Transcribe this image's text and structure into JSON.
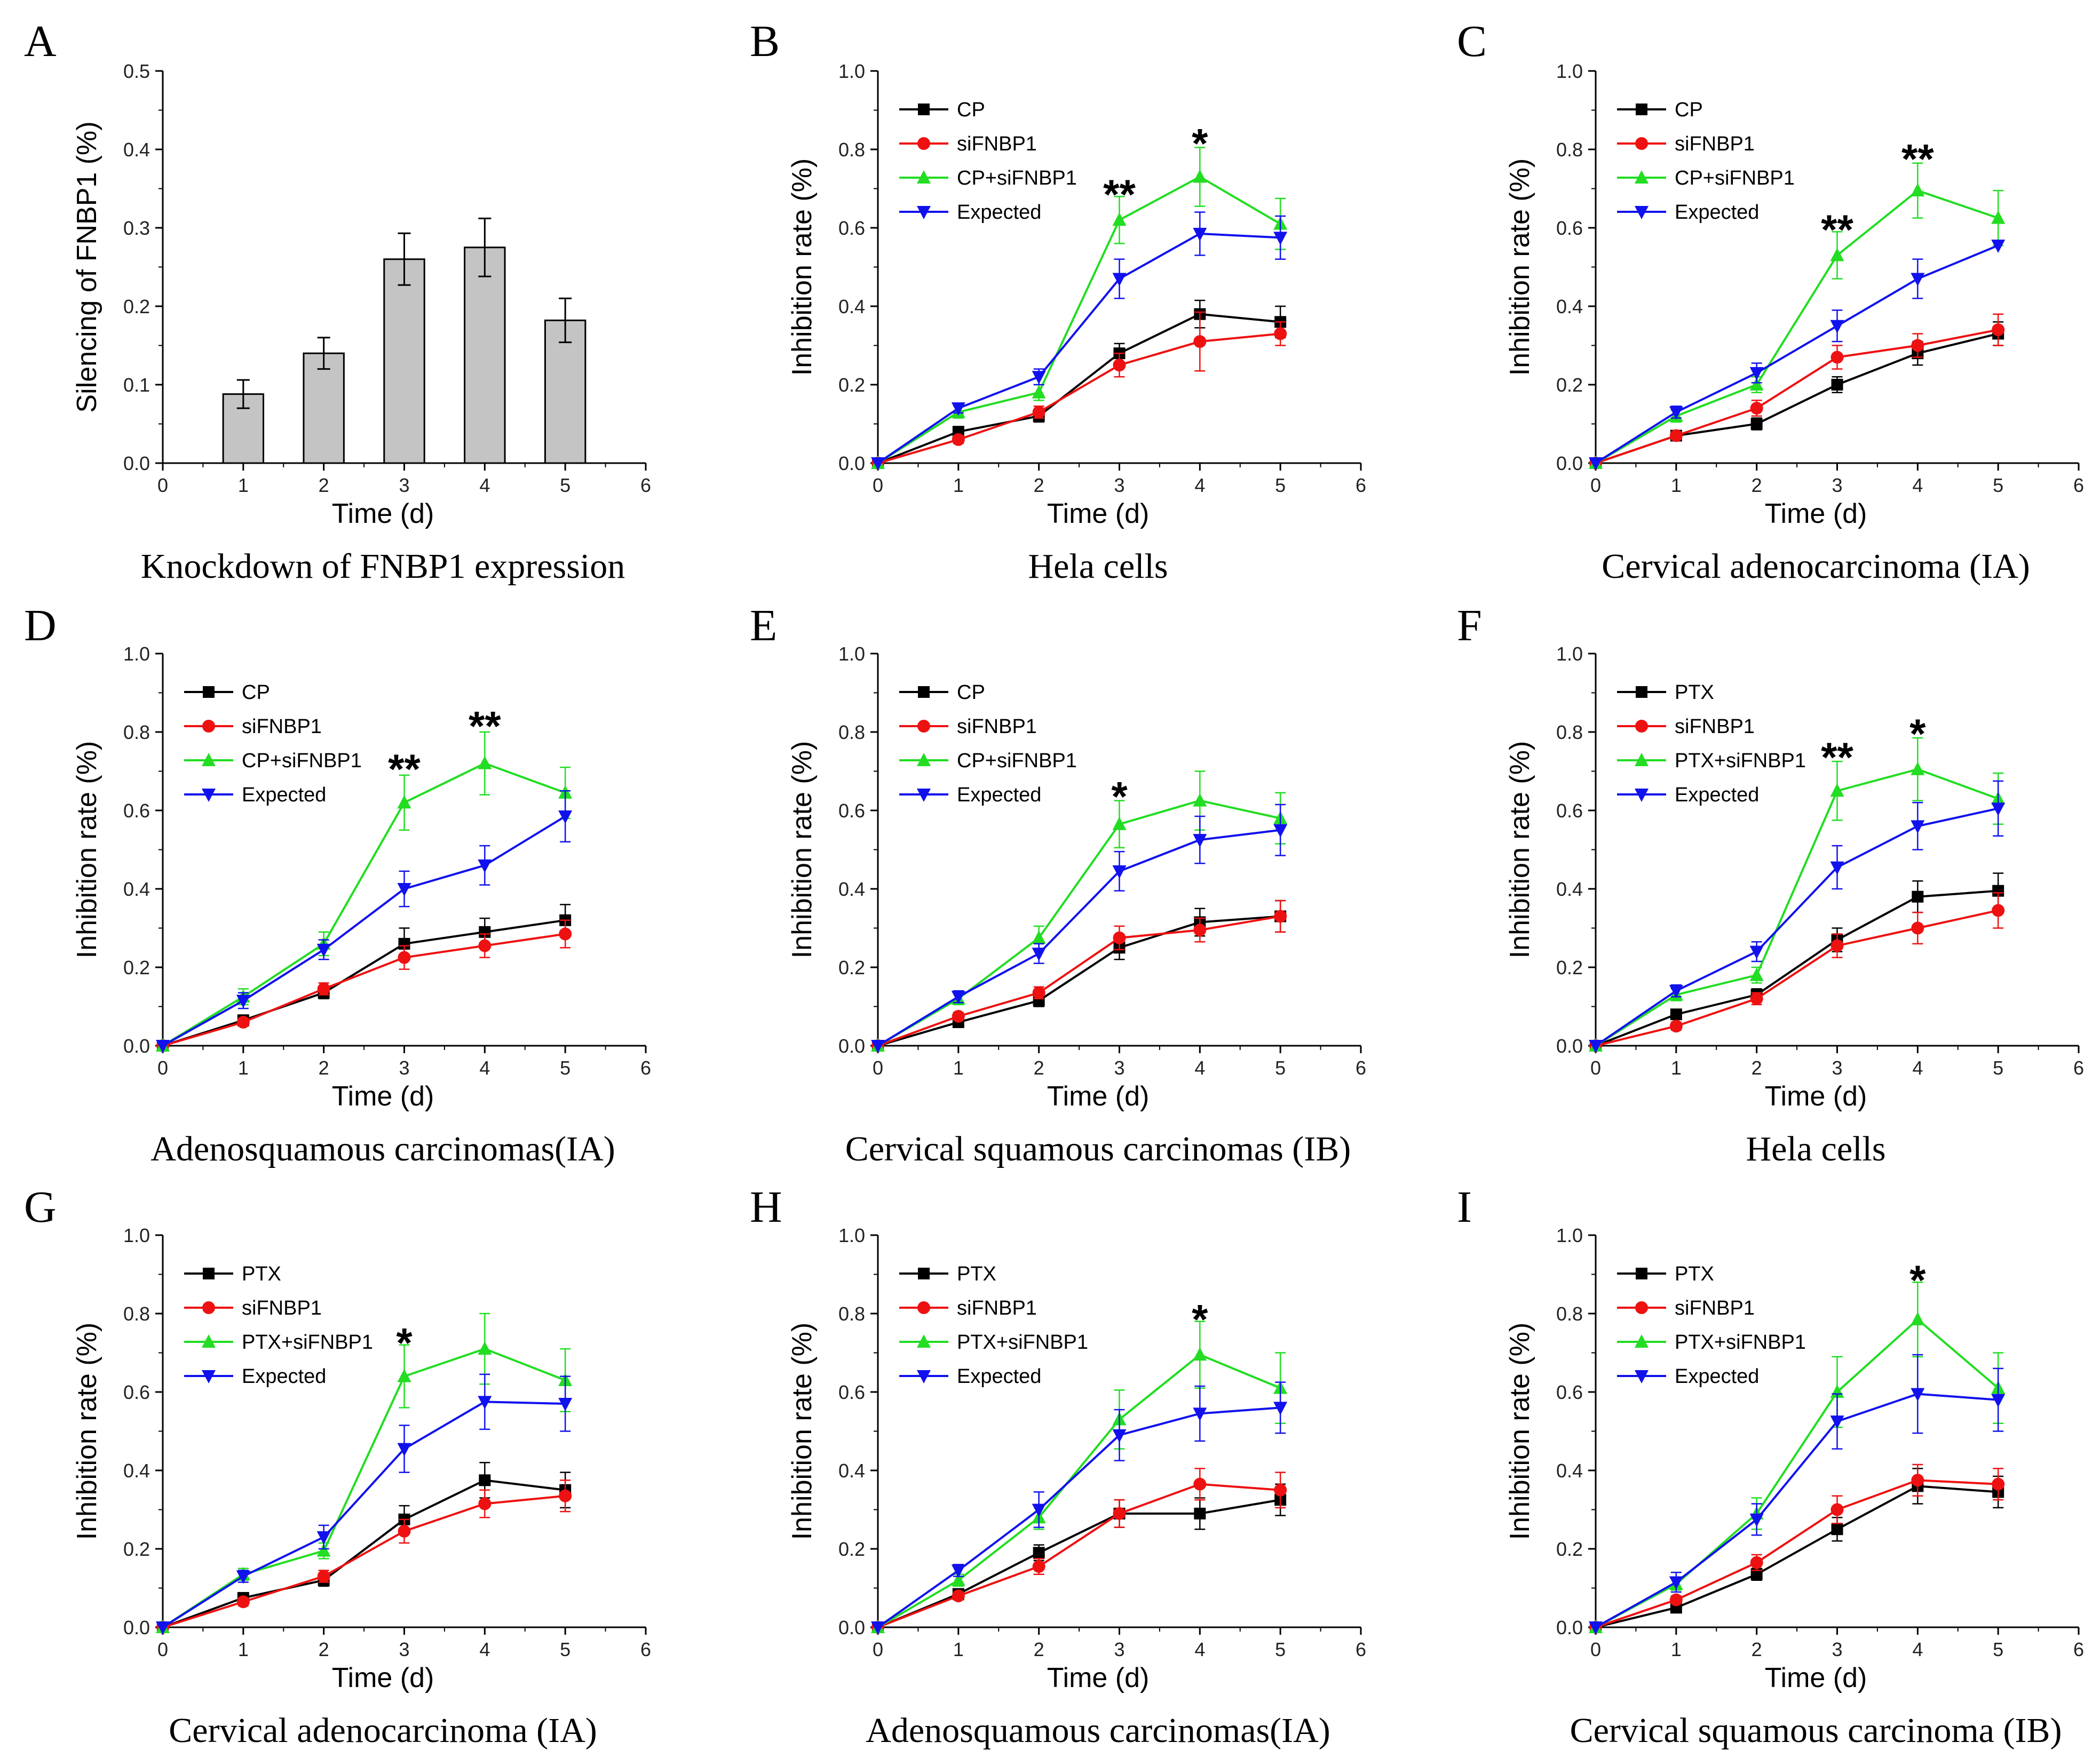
{
  "figure": "FNBP1 knockdown and chemosensitivity panels",
  "colors": {
    "black": "#000000",
    "red": "#ee1111",
    "green": "#22dd22",
    "blue": "#1111ee",
    "bar_fill": "#c4c4c4"
  },
  "chart_data": [
    {
      "panel": "A",
      "type": "bar",
      "caption": "Knockdown of FNBP1 expression",
      "xlabel": "Time (d)",
      "ylabel": "Silencing of FNBP1 (%)",
      "xlim": [
        0,
        6
      ],
      "ylim": [
        0,
        0.5
      ],
      "xticks": [
        "0",
        "1",
        "2",
        "3",
        "4",
        "5",
        "6"
      ],
      "yticks": [
        "0.0",
        "0.1",
        "0.2",
        "0.3",
        "0.4",
        "0.5"
      ],
      "x": [
        1,
        2,
        3,
        4,
        5
      ],
      "values": [
        0.088,
        0.14,
        0.26,
        0.275,
        0.182
      ],
      "errors": [
        0.018,
        0.02,
        0.033,
        0.037,
        0.028
      ]
    },
    {
      "panel": "B",
      "type": "line",
      "caption": "Hela cells",
      "xlabel": "Time (d)",
      "ylabel": "Inhibition rate (%)",
      "xlim": [
        0,
        6
      ],
      "ylim": [
        0,
        1.0
      ],
      "xticks": [
        "0",
        "1",
        "2",
        "3",
        "4",
        "5",
        "6"
      ],
      "yticks": [
        "0.0",
        "0.2",
        "0.4",
        "0.6",
        "0.8",
        "1.0"
      ],
      "legend": [
        "CP",
        "siFNBP1",
        "CP+siFNBP1",
        "Expected"
      ],
      "x": [
        0,
        1,
        2,
        3,
        4,
        5
      ],
      "series": [
        {
          "name": "CP",
          "values": [
            0,
            0.08,
            0.12,
            0.28,
            0.38,
            0.36
          ],
          "errors": [
            0,
            0.012,
            0.015,
            0.025,
            0.035,
            0.04
          ]
        },
        {
          "name": "siFNBP1",
          "values": [
            0,
            0.06,
            0.13,
            0.25,
            0.31,
            0.33
          ],
          "errors": [
            0,
            0.01,
            0.015,
            0.03,
            0.075,
            0.03
          ]
        },
        {
          "name": "CP+siFNBP1",
          "values": [
            0,
            0.13,
            0.18,
            0.62,
            0.73,
            0.61
          ],
          "errors": [
            0,
            0.015,
            0.02,
            0.06,
            0.075,
            0.065
          ]
        },
        {
          "name": "Expected",
          "values": [
            0,
            0.14,
            0.22,
            0.47,
            0.585,
            0.575
          ],
          "errors": [
            0,
            0.012,
            0.02,
            0.05,
            0.055,
            0.055
          ]
        }
      ],
      "annotations": [
        {
          "x": 3,
          "y": 0.69,
          "text": "**"
        },
        {
          "x": 4,
          "y": 0.82,
          "text": "*"
        }
      ]
    },
    {
      "panel": "C",
      "type": "line",
      "caption": "Cervical adenocarcinoma (IA)",
      "xlabel": "Time (d)",
      "ylabel": "Inhibition rate (%)",
      "xlim": [
        0,
        6
      ],
      "ylim": [
        0,
        1.0
      ],
      "xticks": [
        "0",
        "1",
        "2",
        "3",
        "4",
        "5",
        "6"
      ],
      "yticks": [
        "0.0",
        "0.2",
        "0.4",
        "0.6",
        "0.8",
        "1.0"
      ],
      "legend": [
        "CP",
        "siFNBP1",
        "CP+siFNBP1",
        "Expected"
      ],
      "x": [
        0,
        1,
        2,
        3,
        4,
        5
      ],
      "series": [
        {
          "name": "CP",
          "values": [
            0,
            0.07,
            0.1,
            0.2,
            0.28,
            0.33
          ],
          "errors": [
            0,
            0.01,
            0.015,
            0.02,
            0.03,
            0.03
          ]
        },
        {
          "name": "siFNBP1",
          "values": [
            0,
            0.07,
            0.14,
            0.27,
            0.3,
            0.34
          ],
          "errors": [
            0,
            0.01,
            0.02,
            0.03,
            0.03,
            0.04
          ]
        },
        {
          "name": "CP+siFNBP1",
          "values": [
            0,
            0.12,
            0.2,
            0.53,
            0.695,
            0.625
          ],
          "errors": [
            0,
            0.015,
            0.02,
            0.06,
            0.07,
            0.07
          ]
        },
        {
          "name": "Expected",
          "values": [
            0,
            0.13,
            0.23,
            0.35,
            0.47,
            0.555
          ],
          "errors": [
            0,
            0.015,
            0.025,
            0.04,
            0.05,
            0.0
          ]
        }
      ],
      "annotations": [
        {
          "x": 3,
          "y": 0.6,
          "text": "**"
        },
        {
          "x": 4,
          "y": 0.78,
          "text": "**"
        }
      ]
    },
    {
      "panel": "D",
      "type": "line",
      "caption": "Adenosquamous carcinomas(IA)",
      "xlabel": "Time (d)",
      "ylabel": "Inhibition rate (%)",
      "xlim": [
        0,
        6
      ],
      "ylim": [
        0,
        1.0
      ],
      "xticks": [
        "0",
        "1",
        "2",
        "3",
        "4",
        "5",
        "6"
      ],
      "yticks": [
        "0.0",
        "0.2",
        "0.4",
        "0.6",
        "0.8",
        "1.0"
      ],
      "legend": [
        "CP",
        "siFNBP1",
        "CP+siFNBP1",
        "Expected"
      ],
      "x": [
        0,
        1,
        2,
        3,
        4,
        5
      ],
      "series": [
        {
          "name": "CP",
          "values": [
            0,
            0.065,
            0.135,
            0.26,
            0.29,
            0.32
          ],
          "errors": [
            0,
            0.01,
            0.015,
            0.04,
            0.035,
            0.04
          ]
        },
        {
          "name": "siFNBP1",
          "values": [
            0,
            0.06,
            0.145,
            0.225,
            0.255,
            0.285
          ],
          "errors": [
            0,
            0.01,
            0.015,
            0.03,
            0.03,
            0.035
          ]
        },
        {
          "name": "CP+siFNBP1",
          "values": [
            0,
            0.125,
            0.26,
            0.62,
            0.72,
            0.645
          ],
          "errors": [
            0,
            0.02,
            0.03,
            0.07,
            0.08,
            0.065
          ]
        },
        {
          "name": "Expected",
          "values": [
            0,
            0.115,
            0.245,
            0.4,
            0.46,
            0.585
          ],
          "errors": [
            0,
            0.02,
            0.025,
            0.045,
            0.05,
            0.065
          ]
        }
      ],
      "annotations": [
        {
          "x": 3,
          "y": 0.71,
          "text": "**"
        },
        {
          "x": 4,
          "y": 0.82,
          "text": "**"
        }
      ]
    },
    {
      "panel": "E",
      "type": "line",
      "caption": "Cervical squamous carcinomas (IB)",
      "xlabel": "Time (d)",
      "ylabel": "Inhibition rate (%)",
      "xlim": [
        0,
        6
      ],
      "ylim": [
        0,
        1.0
      ],
      "xticks": [
        "0",
        "1",
        "2",
        "3",
        "4",
        "5",
        "6"
      ],
      "yticks": [
        "0.0",
        "0.2",
        "0.4",
        "0.6",
        "0.8",
        "1.0"
      ],
      "legend": [
        "CP",
        "siFNBP1",
        "CP+siFNBP1",
        "Expected"
      ],
      "x": [
        0,
        1,
        2,
        3,
        4,
        5
      ],
      "series": [
        {
          "name": "CP",
          "values": [
            0,
            0.06,
            0.115,
            0.25,
            0.315,
            0.33
          ],
          "errors": [
            0,
            0.01,
            0.015,
            0.03,
            0.035,
            0.04
          ]
        },
        {
          "name": "siFNBP1",
          "values": [
            0,
            0.075,
            0.135,
            0.275,
            0.295,
            0.33
          ],
          "errors": [
            0,
            0.01,
            0.015,
            0.03,
            0.03,
            0.04
          ]
        },
        {
          "name": "CP+siFNBP1",
          "values": [
            0,
            0.12,
            0.275,
            0.565,
            0.625,
            0.58
          ],
          "errors": [
            0,
            0.015,
            0.03,
            0.06,
            0.075,
            0.065
          ]
        },
        {
          "name": "Expected",
          "values": [
            0,
            0.125,
            0.235,
            0.445,
            0.525,
            0.55
          ],
          "errors": [
            0,
            0.015,
            0.025,
            0.05,
            0.06,
            0.065
          ]
        }
      ],
      "annotations": [
        {
          "x": 3,
          "y": 0.64,
          "text": "*"
        }
      ]
    },
    {
      "panel": "F",
      "type": "line",
      "caption": "Hela cells",
      "xlabel": "Time (d)",
      "ylabel": "Inhibition rate (%)",
      "xlim": [
        0,
        6
      ],
      "ylim": [
        0,
        1.0
      ],
      "xticks": [
        "0",
        "1",
        "2",
        "3",
        "4",
        "5",
        "6"
      ],
      "yticks": [
        "0.0",
        "0.2",
        "0.4",
        "0.6",
        "0.8",
        "1.0"
      ],
      "legend": [
        "PTX",
        "siFNBP1",
        "PTX+siFNBP1",
        "Expected"
      ],
      "x": [
        0,
        1,
        2,
        3,
        4,
        5
      ],
      "series": [
        {
          "name": "PTX",
          "values": [
            0,
            0.08,
            0.13,
            0.27,
            0.38,
            0.395
          ],
          "errors": [
            0,
            0.01,
            0.015,
            0.03,
            0.04,
            0.045
          ]
        },
        {
          "name": "siFNBP1",
          "values": [
            0,
            0.05,
            0.12,
            0.255,
            0.3,
            0.345
          ],
          "errors": [
            0,
            0.01,
            0.015,
            0.03,
            0.04,
            0.045
          ]
        },
        {
          "name": "PTX+siFNBP1",
          "values": [
            0,
            0.13,
            0.18,
            0.65,
            0.705,
            0.63
          ],
          "errors": [
            0,
            0.015,
            0.02,
            0.075,
            0.08,
            0.065
          ]
        },
        {
          "name": "Expected",
          "values": [
            0,
            0.14,
            0.24,
            0.455,
            0.56,
            0.605
          ],
          "errors": [
            0,
            0.015,
            0.025,
            0.055,
            0.06,
            0.07
          ]
        }
      ],
      "annotations": [
        {
          "x": 3,
          "y": 0.74,
          "text": "**"
        },
        {
          "x": 4,
          "y": 0.8,
          "text": "*"
        }
      ]
    },
    {
      "panel": "G",
      "type": "line",
      "caption": "Cervical adenocarcinoma (IA)",
      "xlabel": "Time (d)",
      "ylabel": "Inhibition rate (%)",
      "xlim": [
        0,
        6
      ],
      "ylim": [
        0,
        1.0
      ],
      "xticks": [
        "0",
        "1",
        "2",
        "3",
        "4",
        "5",
        "6"
      ],
      "yticks": [
        "0.0",
        "0.2",
        "0.4",
        "0.6",
        "0.8",
        "1.0"
      ],
      "legend": [
        "PTX",
        "siFNBP1",
        "PTX+siFNBP1",
        "Expected"
      ],
      "x": [
        0,
        1,
        2,
        3,
        4,
        5
      ],
      "series": [
        {
          "name": "PTX",
          "values": [
            0,
            0.075,
            0.12,
            0.275,
            0.375,
            0.35
          ],
          "errors": [
            0,
            0.01,
            0.015,
            0.035,
            0.045,
            0.045
          ]
        },
        {
          "name": "siFNBP1",
          "values": [
            0,
            0.065,
            0.13,
            0.245,
            0.315,
            0.335
          ],
          "errors": [
            0,
            0.01,
            0.015,
            0.03,
            0.035,
            0.04
          ]
        },
        {
          "name": "PTX+siFNBP1",
          "values": [
            0,
            0.135,
            0.195,
            0.64,
            0.71,
            0.63
          ],
          "errors": [
            0,
            0.015,
            0.02,
            0.08,
            0.09,
            0.08
          ]
        },
        {
          "name": "Expected",
          "values": [
            0,
            0.13,
            0.23,
            0.455,
            0.575,
            0.57
          ],
          "errors": [
            0,
            0.015,
            0.03,
            0.06,
            0.07,
            0.07
          ]
        }
      ],
      "annotations": [
        {
          "x": 3,
          "y": 0.73,
          "text": "*"
        }
      ]
    },
    {
      "panel": "H",
      "type": "line",
      "caption": "Adenosquamous carcinomas(IA)",
      "xlabel": "Time (d)",
      "ylabel": "Inhibition rate (%)",
      "xlim": [
        0,
        6
      ],
      "ylim": [
        0,
        1.0
      ],
      "xticks": [
        "0",
        "1",
        "2",
        "3",
        "4",
        "5",
        "6"
      ],
      "yticks": [
        "0.0",
        "0.2",
        "0.4",
        "0.6",
        "0.8",
        "1.0"
      ],
      "legend": [
        "PTX",
        "siFNBP1",
        "PTX+siFNBP1",
        "Expected"
      ],
      "x": [
        0,
        1,
        2,
        3,
        4,
        5
      ],
      "series": [
        {
          "name": "PTX",
          "values": [
            0,
            0.085,
            0.19,
            0.29,
            0.29,
            0.325
          ],
          "errors": [
            0,
            0.01,
            0.02,
            0.035,
            0.04,
            0.04
          ]
        },
        {
          "name": "siFNBP1",
          "values": [
            0,
            0.08,
            0.155,
            0.29,
            0.365,
            0.35
          ],
          "errors": [
            0,
            0.01,
            0.02,
            0.035,
            0.04,
            0.045
          ]
        },
        {
          "name": "PTX+siFNBP1",
          "values": [
            0,
            0.12,
            0.28,
            0.53,
            0.695,
            0.61
          ],
          "errors": [
            0,
            0.015,
            0.03,
            0.075,
            0.085,
            0.09
          ]
        },
        {
          "name": "Expected",
          "values": [
            0,
            0.145,
            0.3,
            0.49,
            0.545,
            0.56
          ],
          "errors": [
            0,
            0.015,
            0.045,
            0.065,
            0.07,
            0.065
          ]
        }
      ],
      "annotations": [
        {
          "x": 4,
          "y": 0.79,
          "text": "*"
        }
      ]
    },
    {
      "panel": "I",
      "type": "line",
      "caption": "Cervical squamous carcinoma (IB)",
      "xlabel": "Time (d)",
      "ylabel": "Inhibition rate (%)",
      "xlim": [
        0,
        6
      ],
      "ylim": [
        0,
        1.0
      ],
      "xticks": [
        "0",
        "1",
        "2",
        "3",
        "4",
        "5",
        "6"
      ],
      "yticks": [
        "0.0",
        "0.2",
        "0.4",
        "0.6",
        "0.8",
        "1.0"
      ],
      "legend": [
        "PTX",
        "siFNBP1",
        "PTX+siFNBP1",
        "Expected"
      ],
      "x": [
        0,
        1,
        2,
        3,
        4,
        5
      ],
      "series": [
        {
          "name": "PTX",
          "values": [
            0,
            0.05,
            0.135,
            0.25,
            0.36,
            0.345
          ],
          "errors": [
            0,
            0.01,
            0.015,
            0.03,
            0.045,
            0.04
          ]
        },
        {
          "name": "siFNBP1",
          "values": [
            0,
            0.07,
            0.165,
            0.3,
            0.375,
            0.365
          ],
          "errors": [
            0,
            0.01,
            0.02,
            0.035,
            0.04,
            0.04
          ]
        },
        {
          "name": "PTX+siFNBP1",
          "values": [
            0,
            0.11,
            0.29,
            0.6,
            0.785,
            0.61
          ],
          "errors": [
            0,
            0.015,
            0.04,
            0.09,
            0.095,
            0.09
          ]
        },
        {
          "name": "Expected",
          "values": [
            0,
            0.115,
            0.275,
            0.525,
            0.595,
            0.58
          ],
          "errors": [
            0,
            0.025,
            0.04,
            0.07,
            0.1,
            0.08
          ]
        }
      ],
      "annotations": [
        {
          "x": 4,
          "y": 0.89,
          "text": "*"
        }
      ]
    }
  ]
}
